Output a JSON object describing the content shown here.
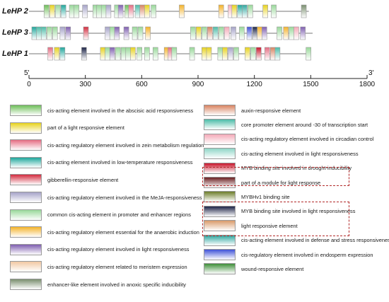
{
  "genes": [
    {
      "name": "LeHP 2",
      "length": 1490,
      "elements": [
        {
          "pos": 80,
          "type": "abscisic"
        },
        {
          "pos": 110,
          "type": "light_resp"
        },
        {
          "pos": 140,
          "type": "common"
        },
        {
          "pos": 170,
          "type": "low_temp"
        },
        {
          "pos": 215,
          "type": "common"
        },
        {
          "pos": 240,
          "type": "common"
        },
        {
          "pos": 285,
          "type": "meja"
        },
        {
          "pos": 340,
          "type": "common"
        },
        {
          "pos": 360,
          "type": "common"
        },
        {
          "pos": 385,
          "type": "common"
        },
        {
          "pos": 410,
          "type": "meja"
        },
        {
          "pos": 455,
          "type": "common"
        },
        {
          "pos": 475,
          "type": "light_reg"
        },
        {
          "pos": 510,
          "type": "abscisic"
        },
        {
          "pos": 530,
          "type": "zein"
        },
        {
          "pos": 565,
          "type": "core_promoter"
        },
        {
          "pos": 590,
          "type": "auxin"
        },
        {
          "pos": 615,
          "type": "light_resp"
        },
        {
          "pos": 650,
          "type": "common"
        },
        {
          "pos": 800,
          "type": "anaerobic"
        },
        {
          "pos": 1010,
          "type": "anaerobic"
        },
        {
          "pos": 1060,
          "type": "circadian"
        },
        {
          "pos": 1080,
          "type": "light_resp"
        },
        {
          "pos": 1110,
          "type": "low_temp"
        },
        {
          "pos": 1135,
          "type": "defense"
        },
        {
          "pos": 1165,
          "type": "common"
        },
        {
          "pos": 1245,
          "type": "light_resp"
        },
        {
          "pos": 1290,
          "type": "common"
        },
        {
          "pos": 1450,
          "type": "enhancer"
        }
      ]
    },
    {
      "name": "LeHP 3",
      "length": 1510,
      "elements": [
        {
          "pos": 15,
          "type": "low_temp"
        },
        {
          "pos": 40,
          "type": "core_promoter"
        },
        {
          "pos": 65,
          "type": "core_promoter"
        },
        {
          "pos": 95,
          "type": "common"
        },
        {
          "pos": 125,
          "type": "common"
        },
        {
          "pos": 165,
          "type": "meja"
        },
        {
          "pos": 195,
          "type": "light_reg"
        },
        {
          "pos": 290,
          "type": "gibberellin"
        },
        {
          "pos": 405,
          "type": "meja"
        },
        {
          "pos": 430,
          "type": "common"
        },
        {
          "pos": 455,
          "type": "light_reg"
        },
        {
          "pos": 505,
          "type": "light_reg"
        },
        {
          "pos": 550,
          "type": "common"
        },
        {
          "pos": 580,
          "type": "common"
        },
        {
          "pos": 620,
          "type": "anaerobic"
        },
        {
          "pos": 860,
          "type": "common"
        },
        {
          "pos": 890,
          "type": "light_resp"
        },
        {
          "pos": 920,
          "type": "common"
        },
        {
          "pos": 950,
          "type": "auxin"
        },
        {
          "pos": 980,
          "type": "core_promoter"
        },
        {
          "pos": 1010,
          "type": "common"
        },
        {
          "pos": 1040,
          "type": "circadian"
        },
        {
          "pos": 1075,
          "type": "meja"
        },
        {
          "pos": 1120,
          "type": "common"
        },
        {
          "pos": 1160,
          "type": "endosperm"
        },
        {
          "pos": 1190,
          "type": "myb_light"
        },
        {
          "pos": 1215,
          "type": "anaerobic"
        },
        {
          "pos": 1240,
          "type": "light_reg"
        },
        {
          "pos": 1320,
          "type": "common"
        },
        {
          "pos": 1355,
          "type": "anaerobic"
        },
        {
          "pos": 1385,
          "type": "common"
        },
        {
          "pos": 1410,
          "type": "circadian"
        },
        {
          "pos": 1445,
          "type": "light_reg"
        }
      ]
    },
    {
      "name": "LeHP 1",
      "length": 1500,
      "elements": [
        {
          "pos": 100,
          "type": "zein"
        },
        {
          "pos": 135,
          "type": "light_resp"
        },
        {
          "pos": 165,
          "type": "low_temp"
        },
        {
          "pos": 280,
          "type": "myb_light"
        },
        {
          "pos": 380,
          "type": "light_resp"
        },
        {
          "pos": 405,
          "type": "common"
        },
        {
          "pos": 430,
          "type": "light_reg"
        },
        {
          "pos": 460,
          "type": "common"
        },
        {
          "pos": 490,
          "type": "common"
        },
        {
          "pos": 515,
          "type": "common"
        },
        {
          "pos": 540,
          "type": "light_resp"
        },
        {
          "pos": 575,
          "type": "common"
        },
        {
          "pos": 615,
          "type": "common"
        },
        {
          "pos": 660,
          "type": "common"
        },
        {
          "pos": 720,
          "type": "anaerobic"
        },
        {
          "pos": 740,
          "type": "zein"
        },
        {
          "pos": 760,
          "type": "common"
        },
        {
          "pos": 855,
          "type": "common"
        },
        {
          "pos": 920,
          "type": "light_resp"
        },
        {
          "pos": 945,
          "type": "light_resp"
        },
        {
          "pos": 1005,
          "type": "common"
        },
        {
          "pos": 1030,
          "type": "light_resp"
        },
        {
          "pos": 1060,
          "type": "meja"
        },
        {
          "pos": 1090,
          "type": "common"
        },
        {
          "pos": 1150,
          "type": "light_resp"
        },
        {
          "pos": 1180,
          "type": "common"
        },
        {
          "pos": 1210,
          "type": "myb_drought"
        },
        {
          "pos": 1255,
          "type": "zein"
        },
        {
          "pos": 1285,
          "type": "auxin"
        },
        {
          "pos": 1310,
          "type": "core_promoter"
        },
        {
          "pos": 1475,
          "type": "common"
        }
      ]
    }
  ],
  "axis": {
    "min": 0,
    "max": 1800,
    "ticks": [
      0,
      300,
      600,
      900,
      1200,
      1500,
      1800
    ],
    "left_label": "5'",
    "right_label": "3'"
  },
  "legend": {
    "left": [
      {
        "type": "abscisic",
        "label": "cis-acting element involved in the abscisic acid responsiveness",
        "color": "#6fbf5a"
      },
      {
        "type": "light_resp",
        "label": "part of a light responsive element",
        "color": "#e8d31d"
      },
      {
        "type": "zein",
        "label": "cis-acting regulatory element involved in zein metabolism regulation",
        "color": "#e56d83"
      },
      {
        "type": "low_temp",
        "label": "cis-acting element involved in low-temperature responsiveness",
        "color": "#1fa79c"
      },
      {
        "type": "gibberellin",
        "label": "gibberellin-responsive element",
        "color": "#d32c3e"
      },
      {
        "type": "meja",
        "label": "cis-acting regulatory element involved in the MeJA-responsiveness",
        "color": "#a6a3c8"
      },
      {
        "type": "common",
        "label": "common cis-acting element in promoter and enhancer regions",
        "color": "#99d99a"
      },
      {
        "type": "anaerobic",
        "label": "cis-acting regulatory element essential for the anaerobic induction",
        "color": "#f4b32b"
      },
      {
        "type": "light_reg",
        "label": "cis-acting regulatory element involved in light responsiveness",
        "color": "#7f5fb0"
      },
      {
        "type": "meristem",
        "label": "cis-acting regulatory element related to meristem expression",
        "color": "#f2c9a3"
      },
      {
        "type": "enhancer",
        "label": "enhancer-like element involved in anoxic specific inducibility",
        "color": "#7a8f6f"
      }
    ],
    "right": [
      {
        "type": "auxin",
        "label": "auxin-responsive element",
        "color": "#d98462"
      },
      {
        "type": "core_promoter",
        "label": "core promoter element around -30 of transcription start",
        "color": "#4cbca8"
      },
      {
        "type": "circadian",
        "label": "cis-acting regulatory element involved in circadian control",
        "color": "#f4aab8"
      },
      {
        "type": "light_resp_cis",
        "label": "cis-acting element involved in light responsiveness",
        "color": "#8fd6c7"
      },
      {
        "type": "myb_drought",
        "label": "MYB binding site involved in drought-inducibility",
        "color": "#c8142a"
      },
      {
        "type": "light_module",
        "label": "part of a module for light response",
        "color": "#6b1f21"
      },
      {
        "type": "mybhv1",
        "label": "MYBHv1 binding site",
        "color": "#6d7d2a"
      },
      {
        "type": "myb_light",
        "label": "MYB binding site involved in light responsiveness",
        "color": "#1c2447"
      },
      {
        "type": "light_elem",
        "label": "light responsive element",
        "color": "#d99a6a"
      },
      {
        "type": "defense",
        "label": "cis-acting element involved in defense and stress responsiveness",
        "color": "#2fa7a0"
      },
      {
        "type": "endosperm",
        "label": "cis-regulatory element involved in endosperm expression",
        "color": "#3f52d8"
      },
      {
        "type": "wound",
        "label": "wound-responsive element",
        "color": "#3f8f3a"
      }
    ]
  }
}
